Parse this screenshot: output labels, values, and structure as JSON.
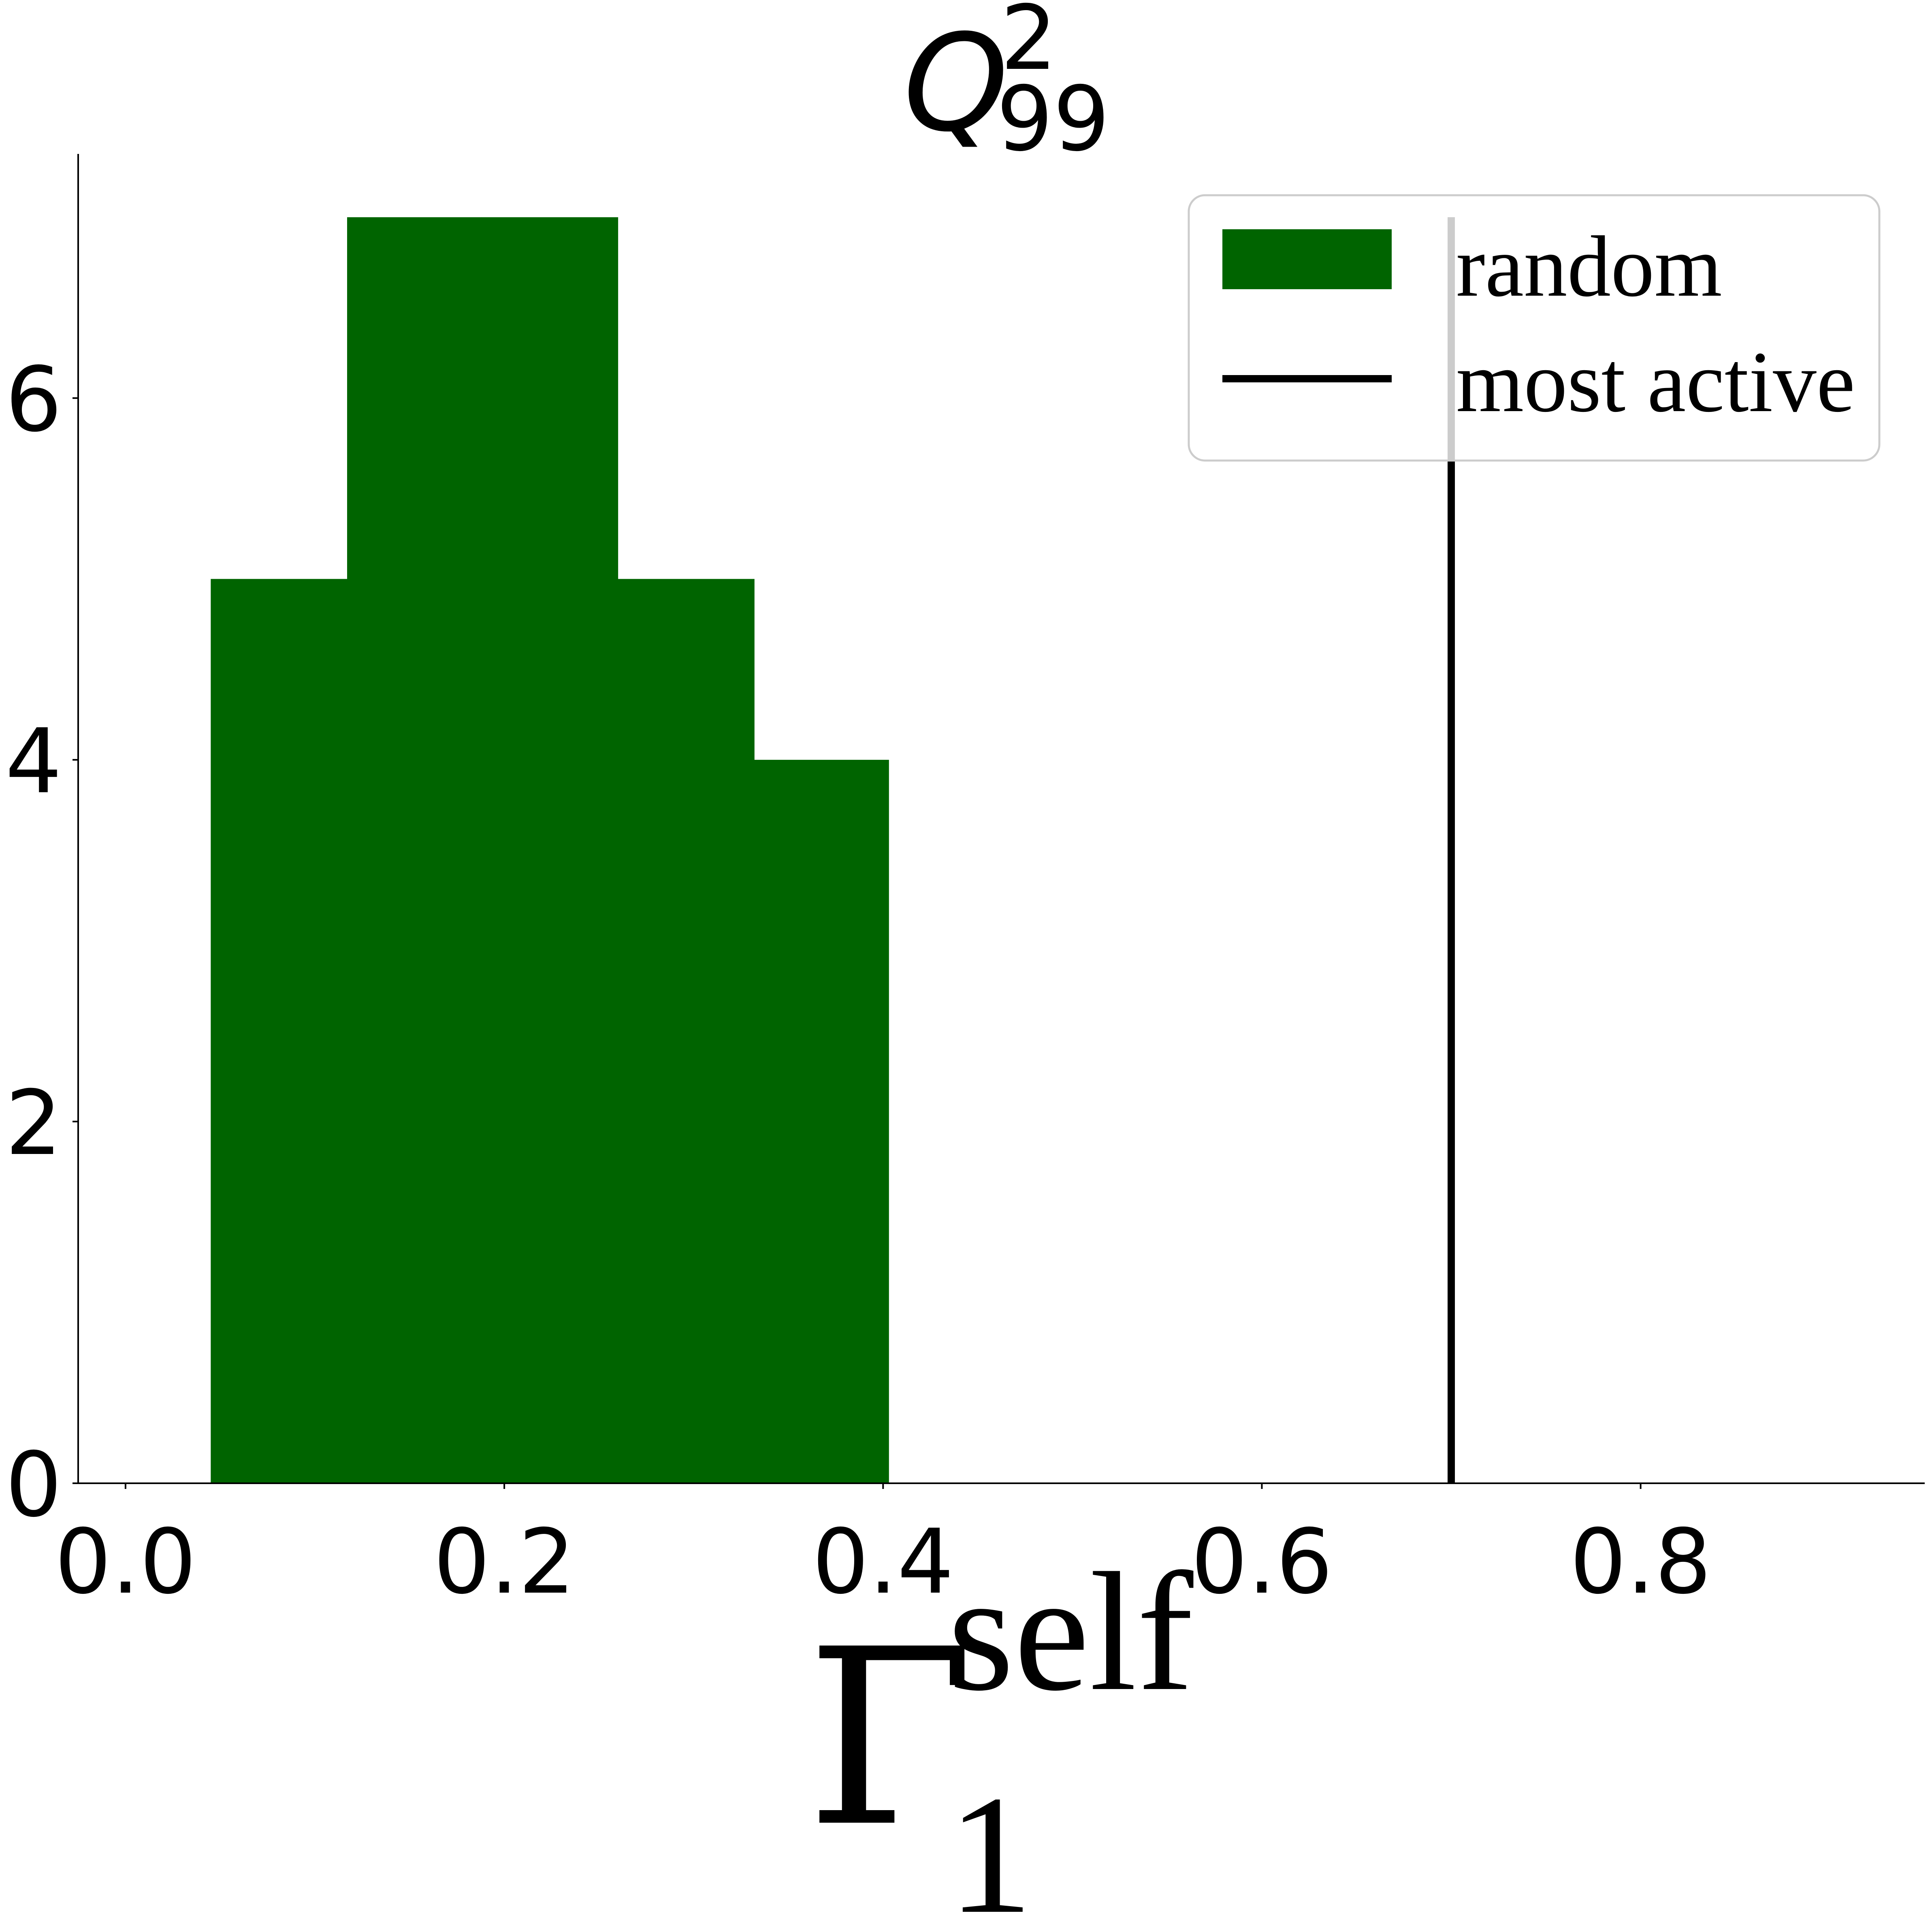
{
  "chart_data": {
    "type": "bar",
    "title": {
      "base": "Q",
      "superscript": "2",
      "subscript": "99"
    },
    "xlabel": {
      "base": "Γ",
      "superscript": "self",
      "subscript": "1"
    },
    "ylabel": "",
    "xlim": [
      -0.025,
      0.95
    ],
    "ylim": [
      0,
      7.35
    ],
    "xticks": [
      0.0,
      0.2,
      0.4,
      0.6,
      0.8
    ],
    "xtick_labels": [
      "0.0",
      "0.2",
      "0.4",
      "0.6",
      "0.8"
    ],
    "yticks": [
      0,
      2,
      4,
      6
    ],
    "ytick_labels": [
      "0",
      "2",
      "4",
      "6"
    ],
    "histogram": {
      "name": "random",
      "color": "#006400",
      "bin_edges": [
        0.045,
        0.117,
        0.188,
        0.26,
        0.332,
        0.403
      ],
      "counts": [
        5,
        7,
        7,
        5,
        4
      ]
    },
    "vertical_line": {
      "name": "most active",
      "x": 0.7,
      "y_top": 7,
      "color": "#000000"
    },
    "legend": {
      "position": "top-right",
      "entries": [
        "random",
        "most active"
      ]
    },
    "grid": false
  }
}
